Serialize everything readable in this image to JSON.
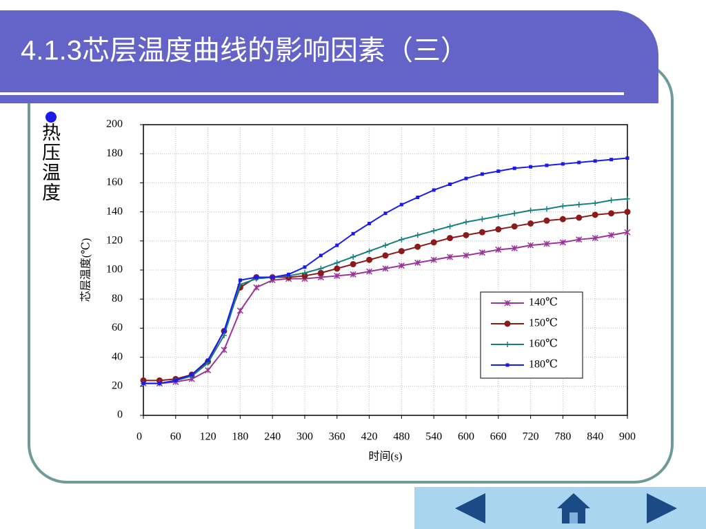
{
  "slide_title": "4.1.3芯层温度曲线的影响因素（三）",
  "bullet_text": "热压温度",
  "chart_data": {
    "type": "line",
    "xlabel": "时间(s)",
    "ylabel": "芯层温度(℃)",
    "x": [
      0,
      30,
      60,
      90,
      120,
      150,
      180,
      210,
      240,
      270,
      300,
      330,
      360,
      390,
      420,
      450,
      480,
      510,
      540,
      570,
      600,
      630,
      660,
      690,
      720,
      750,
      780,
      810,
      840,
      870,
      900
    ],
    "series": [
      {
        "name": "140℃",
        "color": "#993399",
        "marker": "asterisk",
        "values": [
          22,
          22,
          23,
          25,
          31,
          45,
          72,
          88,
          93,
          94,
          94,
          95,
          96,
          97,
          99,
          101,
          103,
          105,
          107,
          109,
          110,
          112,
          114,
          115,
          117,
          118,
          119,
          121,
          122,
          124,
          126
        ]
      },
      {
        "name": "150℃",
        "color": "#8b1a1a",
        "marker": "circle",
        "values": [
          24,
          24,
          25,
          28,
          37,
          58,
          88,
          95,
          95,
          95,
          96,
          98,
          101,
          104,
          107,
          110,
          113,
          116,
          119,
          122,
          124,
          126,
          128,
          130,
          132,
          134,
          135,
          136,
          138,
          139,
          140
        ]
      },
      {
        "name": "160℃",
        "color": "#168080",
        "marker": "plus",
        "values": [
          22,
          22,
          24,
          27,
          36,
          55,
          90,
          94,
          95,
          96,
          98,
          101,
          105,
          109,
          113,
          117,
          121,
          124,
          127,
          130,
          133,
          135,
          137,
          139,
          141,
          142,
          144,
          145,
          146,
          148,
          149
        ]
      },
      {
        "name": "180℃",
        "color": "#1a1aee",
        "marker": "square",
        "values": [
          22,
          22,
          24,
          28,
          38,
          58,
          93,
          95,
          95,
          97,
          102,
          110,
          117,
          125,
          132,
          139,
          145,
          150,
          155,
          159,
          163,
          166,
          168,
          170,
          171,
          172,
          173,
          174,
          175,
          176,
          177
        ]
      }
    ],
    "xlim": [
      0,
      900
    ],
    "ylim": [
      0,
      200
    ],
    "xticks": [
      0,
      60,
      120,
      180,
      240,
      300,
      360,
      420,
      480,
      540,
      600,
      660,
      720,
      780,
      840,
      900
    ],
    "yticks": [
      0,
      20,
      40,
      60,
      80,
      100,
      120,
      140,
      160,
      180,
      200
    ],
    "grid": true
  }
}
